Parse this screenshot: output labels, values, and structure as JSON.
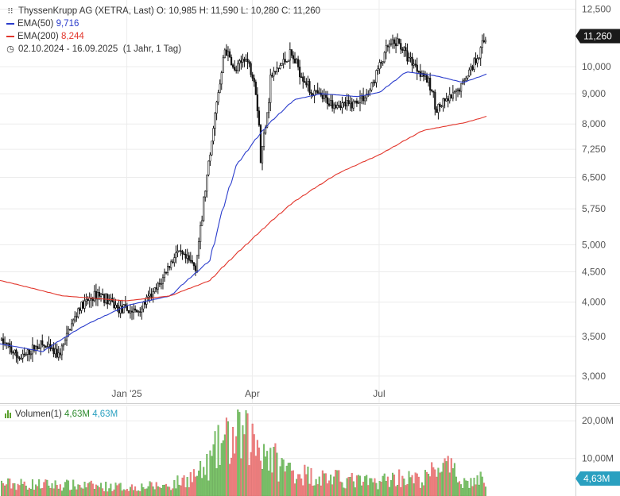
{
  "legend": {
    "title": "ThyssenKrupp AG (XETRA, Last)",
    "ohlc": {
      "o_label": "O:",
      "o": "10,985",
      "h_label": "H:",
      "h": "11,590",
      "l_label": "L:",
      "l": "10,280",
      "c_label": "C:",
      "c": "11,260"
    },
    "ema50": {
      "label": "EMA(50)",
      "value": "9,716"
    },
    "ema200": {
      "label": "EMA(200)",
      "value": "8,244"
    },
    "range": {
      "dates": "02.10.2024 - 16.09.2025",
      "span": "(1 Jahr, 1 Tag)"
    }
  },
  "volume_legend": {
    "label": "Volumen(1)",
    "v1": "4,63M",
    "v2": "4,63M"
  },
  "colors": {
    "ema50": "#2a3ccc",
    "ema200": "#e2352b",
    "candle": "#111111",
    "vol_up": "#7cc46a",
    "vol_down": "#f08080",
    "badge": "#1a1a1a",
    "vol_badge": "#2aa0c0"
  },
  "chart_data": [
    {
      "type": "line",
      "title": "ThyssenKrupp AG (XETRA, Last)",
      "price_axis": {
        "scale": "log",
        "ticks": [
          "3,000",
          "3,500",
          "4,000",
          "4,500",
          "5,000",
          "5,750",
          "6,500",
          "7,250",
          "8,000",
          "9,000",
          "10,000",
          "12,500"
        ],
        "tick_values": [
          3.0,
          3.5,
          4.0,
          4.5,
          5.0,
          5.75,
          6.5,
          7.25,
          8.0,
          9.0,
          10.0,
          12.5
        ],
        "range": [
          2.7,
          12.8
        ]
      },
      "x_axis": {
        "range": [
          "2024-10-02",
          "2025-09-16"
        ],
        "ticks": [
          "Jan '25",
          "Apr",
          "Jul"
        ],
        "tick_dates": [
          "2025-01-01",
          "2025-04-01",
          "2025-07-01"
        ]
      },
      "last_price_badge": "11,260",
      "grid": true,
      "close_series": {
        "name": "ThyssenKrupp AG",
        "x": [
          "2024-10-02",
          "2024-10-16",
          "2024-10-30",
          "2024-11-13",
          "2024-11-27",
          "2024-12-11",
          "2024-12-25",
          "2025-01-08",
          "2025-01-22",
          "2025-02-05",
          "2025-02-19",
          "2025-02-26",
          "2025-03-05",
          "2025-03-12",
          "2025-03-19",
          "2025-03-26",
          "2025-04-02",
          "2025-04-07",
          "2025-04-14",
          "2025-04-28",
          "2025-05-12",
          "2025-05-26",
          "2025-06-09",
          "2025-06-23",
          "2025-07-07",
          "2025-07-14",
          "2025-07-21",
          "2025-08-04",
          "2025-08-11",
          "2025-08-25",
          "2025-09-08",
          "2025-09-16"
        ],
        "values": [
          3.45,
          3.2,
          3.4,
          3.25,
          3.9,
          4.15,
          3.9,
          3.85,
          4.2,
          4.85,
          4.6,
          6.2,
          8.3,
          10.7,
          9.8,
          10.4,
          9.6,
          6.9,
          9.6,
          10.5,
          9.1,
          8.7,
          8.6,
          9.0,
          10.8,
          11.0,
          10.4,
          9.5,
          8.5,
          9.0,
          10.3,
          11.26
        ]
      },
      "series": [
        {
          "name": "EMA(50)",
          "x": [
            "2024-10-02",
            "2024-11-01",
            "2024-12-01",
            "2025-01-01",
            "2025-02-01",
            "2025-03-01",
            "2025-03-20",
            "2025-04-10",
            "2025-05-01",
            "2025-05-20",
            "2025-06-15",
            "2025-07-01",
            "2025-07-20",
            "2025-08-10",
            "2025-08-30",
            "2025-09-16"
          ],
          "values": [
            3.4,
            3.3,
            3.65,
            3.95,
            4.1,
            4.7,
            6.8,
            7.9,
            8.8,
            9.0,
            8.9,
            9.05,
            9.8,
            9.65,
            9.4,
            9.716
          ]
        },
        {
          "name": "EMA(200)",
          "x": [
            "2024-10-02",
            "2024-11-15",
            "2024-12-31",
            "2025-02-01",
            "2025-03-01",
            "2025-03-31",
            "2025-04-30",
            "2025-06-01",
            "2025-07-01",
            "2025-08-01",
            "2025-09-01",
            "2025-09-16"
          ],
          "values": [
            4.35,
            4.1,
            4.02,
            4.1,
            4.35,
            5.1,
            5.9,
            6.6,
            7.1,
            7.8,
            8.05,
            8.244
          ]
        }
      ]
    },
    {
      "type": "bar",
      "title": "Volumen(1)",
      "y_axis": {
        "ticks": [
          "10,00M",
          "20,00M"
        ],
        "tick_values": [
          10,
          20
        ],
        "range": [
          0,
          23
        ]
      },
      "last_value_badge": "4,63M",
      "x": [
        "2024-10-02",
        "2024-11-01",
        "2024-12-01",
        "2025-01-01",
        "2025-02-01",
        "2025-02-25",
        "2025-03-10",
        "2025-03-25",
        "2025-04-07",
        "2025-04-20",
        "2025-05-10",
        "2025-06-01",
        "2025-06-25",
        "2025-07-15",
        "2025-08-01",
        "2025-08-14",
        "2025-09-01",
        "2025-09-16"
      ],
      "values": [
        3.2,
        3.0,
        2.7,
        2.3,
        2.8,
        6.5,
        14.0,
        15.5,
        13.5,
        8.0,
        5.5,
        4.5,
        3.5,
        5.0,
        4.0,
        8.5,
        3.5,
        4.63
      ]
    }
  ]
}
